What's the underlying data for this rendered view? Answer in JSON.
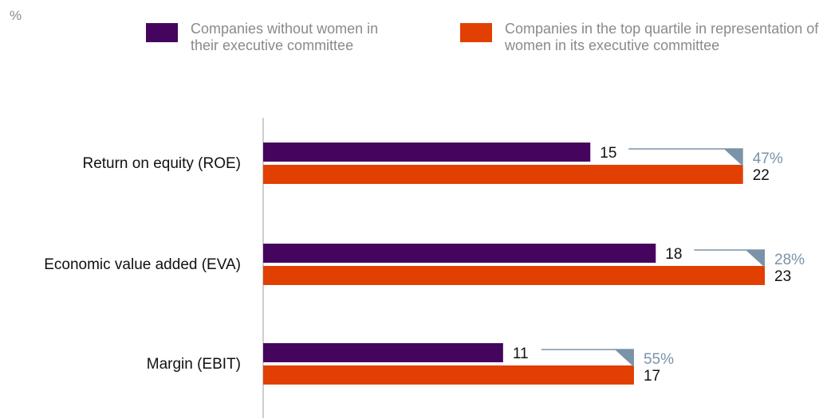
{
  "unit": "%",
  "legend": [
    {
      "label": "Companies without women in their executive committee",
      "color": "#45055e"
    },
    {
      "label": "Companies in the top quartile in representation of women in its executive committee",
      "color": "#e23f02"
    }
  ],
  "chart_data": {
    "type": "bar",
    "orientation": "horizontal",
    "categories": [
      "Return on equity (ROE)",
      "Economic value added (EVA)",
      "Margin (EBIT)"
    ],
    "series": [
      {
        "name": "Companies without women in their executive committee",
        "values": [
          15,
          18,
          11
        ],
        "color": "#45055e"
      },
      {
        "name": "Companies in the top quartile in representation of women in its executive committee",
        "values": [
          22,
          23,
          17
        ],
        "color": "#e23f02"
      }
    ],
    "annotations": [
      "47%",
      "28%",
      "55%"
    ],
    "annotation_color": "#7a93a8",
    "xlim": [
      0,
      23
    ],
    "grid": false,
    "legend_position": "top"
  }
}
